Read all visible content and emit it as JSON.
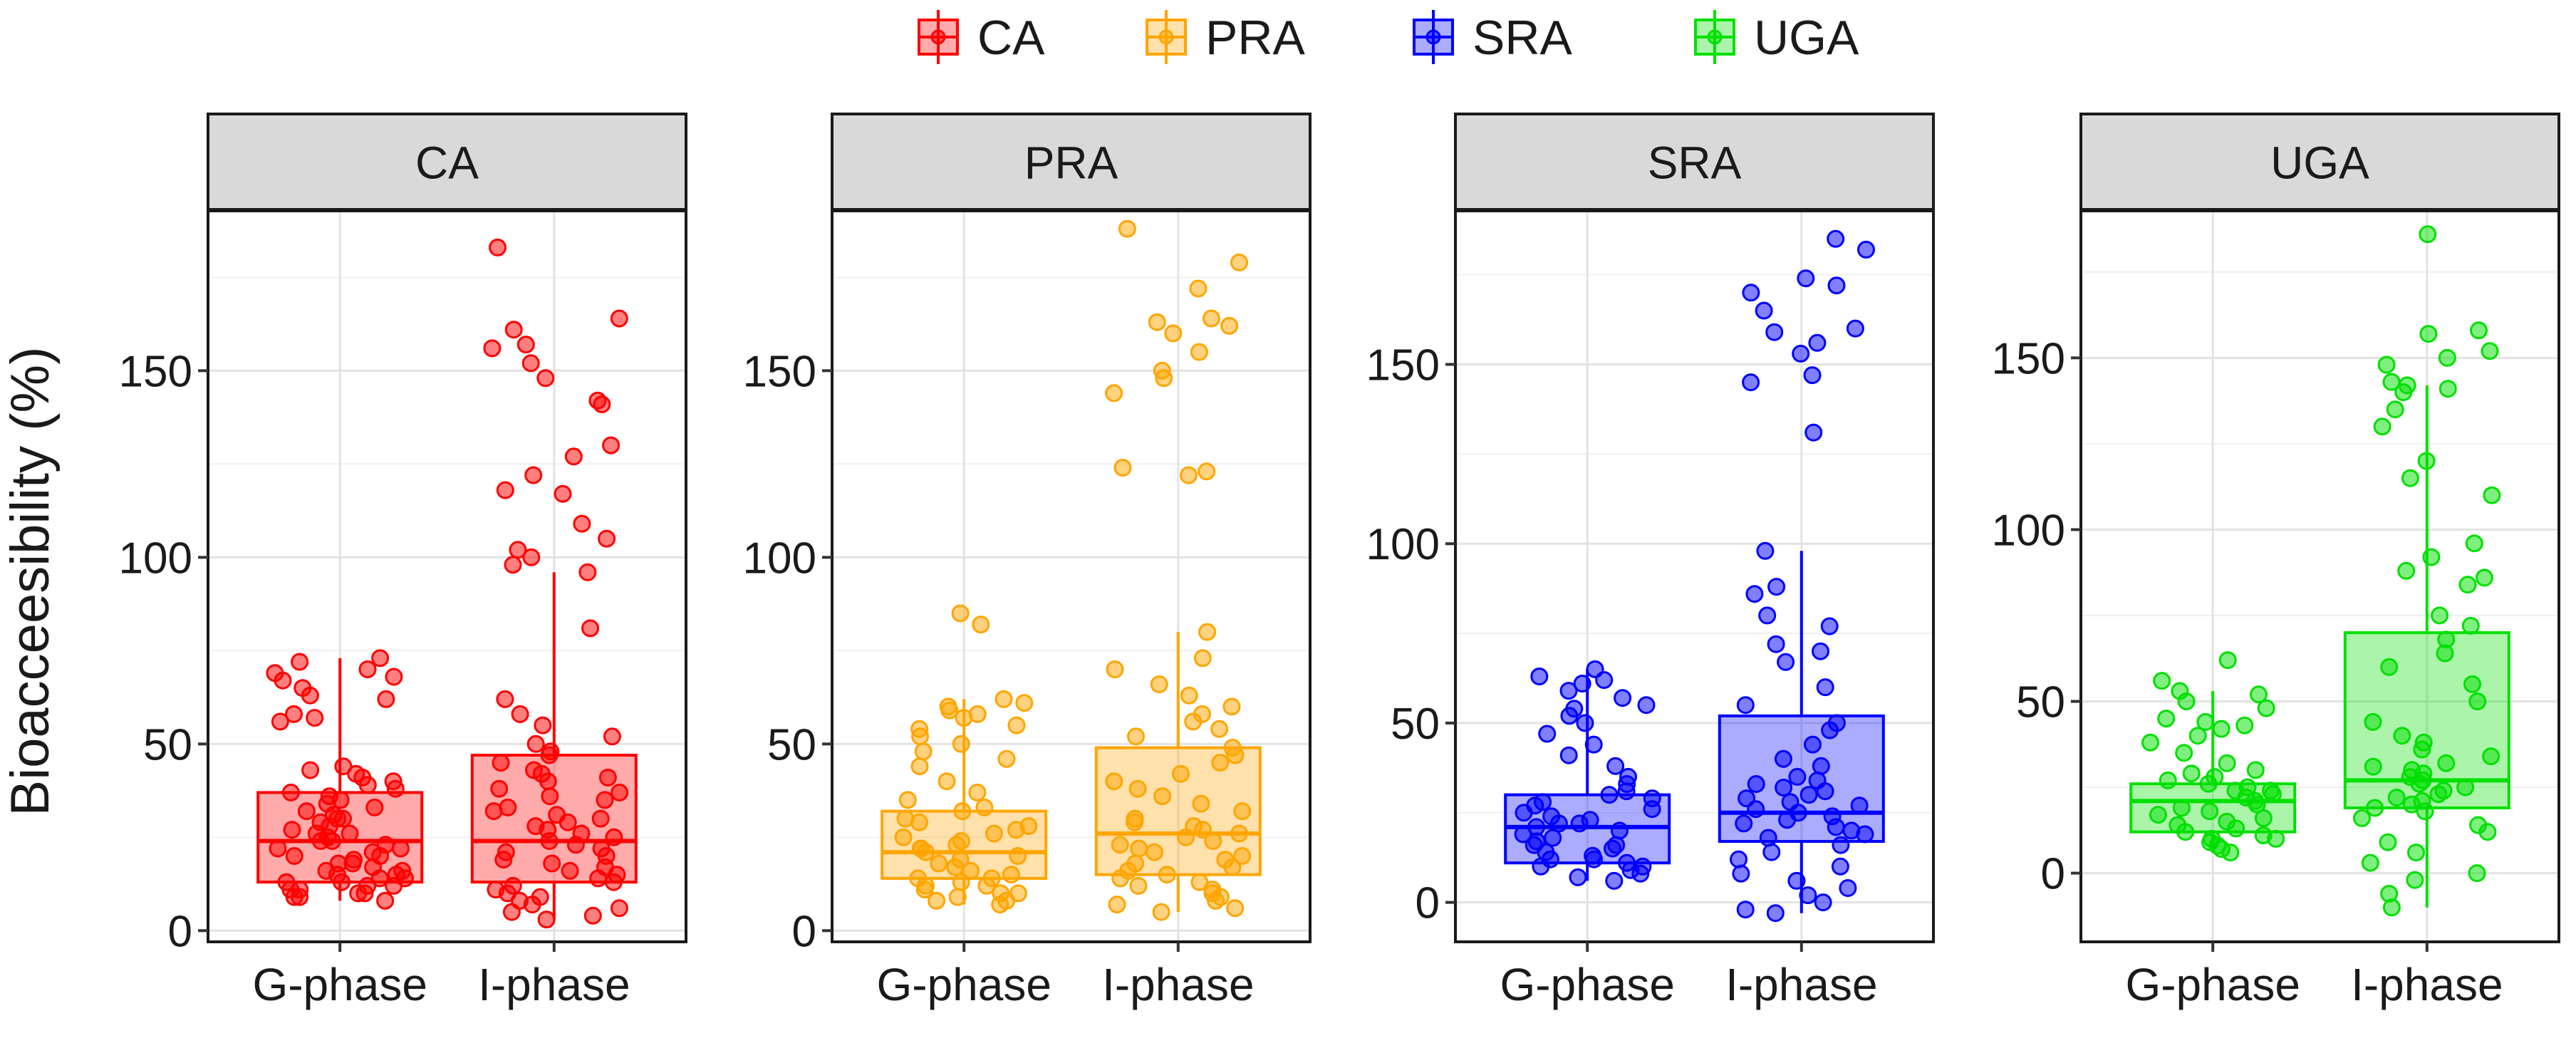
{
  "chart_data": {
    "type": "boxplot",
    "ylabel": "Bioacceesibility (%)",
    "legend": {
      "position": "top",
      "entries": [
        {
          "name": "CA",
          "color": "#ff0000"
        },
        {
          "name": "PRA",
          "color": "#ffa500"
        },
        {
          "name": "SRA",
          "color": "#0000ff"
        },
        {
          "name": "UGA",
          "color": "#00e000"
        }
      ]
    },
    "categories": [
      "G-phase",
      "I-phase"
    ],
    "grid": true,
    "panels": [
      {
        "title": "CA",
        "color": "#ff0000",
        "ylim": [
          -3,
          193
        ],
        "yticks": [
          0,
          50,
          100,
          150
        ],
        "boxes": [
          {
            "category": "G-phase",
            "q1": 13,
            "median": 24,
            "q3": 37,
            "whisker_low": 8,
            "whisker_high": 73,
            "points": [
              8,
              9,
              9,
              10,
              10,
              11,
              11,
              12,
              12,
              13,
              13,
              14,
              14,
              15,
              15,
              16,
              16,
              17,
              18,
              18,
              19,
              20,
              20,
              21,
              22,
              22,
              23,
              24,
              24,
              25,
              26,
              26,
              27,
              28,
              29,
              30,
              30,
              31,
              32,
              33,
              34,
              35,
              36,
              37,
              38,
              39,
              40,
              41,
              42,
              43,
              44,
              56,
              57,
              58,
              62,
              63,
              65,
              67,
              68,
              69,
              70,
              72,
              73
            ]
          },
          {
            "category": "I-phase",
            "q1": 13,
            "median": 24,
            "q3": 47,
            "whisker_low": 3,
            "whisker_high": 96,
            "points": [
              3,
              4,
              5,
              6,
              7,
              8,
              9,
              10,
              11,
              12,
              13,
              14,
              15,
              16,
              17,
              18,
              19,
              20,
              21,
              22,
              23,
              24,
              25,
              26,
              27,
              28,
              29,
              30,
              31,
              32,
              33,
              35,
              36,
              37,
              38,
              40,
              41,
              42,
              43,
              45,
              47,
              48,
              50,
              52,
              55,
              58,
              62,
              81,
              96,
              98,
              100,
              102,
              105,
              109,
              117,
              118,
              122,
              127,
              130,
              141,
              142,
              148,
              152,
              156,
              157,
              161,
              164,
              183
            ]
          }
        ]
      },
      {
        "title": "PRA",
        "color": "#ffa500",
        "ylim": [
          -3,
          193
        ],
        "yticks": [
          0,
          50,
          100,
          150
        ],
        "boxes": [
          {
            "category": "G-phase",
            "q1": 14,
            "median": 21,
            "q3": 32,
            "whisker_low": 7,
            "whisker_high": 62,
            "points": [
              7,
              8,
              8,
              9,
              10,
              10,
              11,
              12,
              12,
              13,
              14,
              14,
              15,
              16,
              17,
              18,
              19,
              20,
              21,
              22,
              22,
              23,
              24,
              25,
              26,
              27,
              28,
              29,
              30,
              32,
              33,
              35,
              37,
              40,
              44,
              46,
              48,
              50,
              52,
              54,
              55,
              57,
              58,
              59,
              60,
              61,
              62,
              82,
              85
            ]
          },
          {
            "category": "I-phase",
            "q1": 15,
            "median": 26,
            "q3": 49,
            "whisker_low": 5,
            "whisker_high": 80,
            "points": [
              5,
              6,
              7,
              8,
              9,
              10,
              11,
              12,
              13,
              14,
              15,
              16,
              17,
              18,
              19,
              20,
              21,
              22,
              23,
              24,
              25,
              26,
              27,
              28,
              29,
              30,
              32,
              34,
              36,
              38,
              40,
              42,
              45,
              47,
              49,
              52,
              54,
              56,
              58,
              60,
              63,
              66,
              70,
              73,
              80,
              122,
              123,
              124,
              144,
              148,
              150,
              155,
              160,
              162,
              163,
              164,
              172,
              179,
              188
            ]
          }
        ]
      },
      {
        "title": "SRA",
        "color": "#0000ff",
        "ylim": [
          -11,
          193
        ],
        "yticks": [
          0,
          50,
          100,
          150
        ],
        "boxes": [
          {
            "category": "G-phase",
            "q1": 11,
            "median": 21,
            "q3": 30,
            "whisker_low": 6,
            "whisker_high": 65,
            "points": [
              6,
              7,
              8,
              9,
              10,
              10,
              11,
              12,
              12,
              13,
              14,
              15,
              16,
              16,
              17,
              18,
              19,
              20,
              21,
              22,
              22,
              23,
              24,
              25,
              26,
              27,
              28,
              29,
              30,
              31,
              33,
              35,
              38,
              41,
              44,
              47,
              50,
              52,
              54,
              55,
              57,
              59,
              61,
              62,
              63,
              65
            ]
          },
          {
            "category": "I-phase",
            "q1": 17,
            "median": 25,
            "q3": 52,
            "whisker_low": -3,
            "whisker_high": 98,
            "points": [
              -3,
              -2,
              0,
              2,
              4,
              6,
              8,
              10,
              12,
              14,
              16,
              18,
              19,
              20,
              21,
              22,
              23,
              24,
              25,
              26,
              27,
              28,
              29,
              30,
              31,
              32,
              33,
              34,
              35,
              38,
              40,
              44,
              48,
              50,
              55,
              60,
              67,
              70,
              72,
              77,
              80,
              86,
              88,
              98,
              131,
              145,
              147,
              153,
              156,
              159,
              160,
              165,
              170,
              172,
              174,
              182,
              185
            ]
          }
        ]
      },
      {
        "title": "UGA",
        "color": "#00e000",
        "ylim": [
          -20,
          193
        ],
        "yticks": [
          0,
          50,
          100,
          150
        ],
        "boxes": [
          {
            "category": "G-phase",
            "q1": 12,
            "median": 21,
            "q3": 26,
            "whisker_low": 6,
            "whisker_high": 53,
            "points": [
              6,
              7,
              8,
              9,
              10,
              10,
              11,
              12,
              13,
              14,
              15,
              16,
              17,
              18,
              19,
              20,
              21,
              22,
              23,
              24,
              24,
              25,
              26,
              27,
              28,
              29,
              30,
              32,
              35,
              38,
              40,
              42,
              43,
              44,
              45,
              48,
              50,
              52,
              53,
              56,
              62
            ]
          },
          {
            "category": "I-phase",
            "q1": 19,
            "median": 27,
            "q3": 70,
            "whisker_low": -10,
            "whisker_high": 142,
            "points": [
              -10,
              -6,
              -2,
              0,
              3,
              6,
              9,
              12,
              14,
              16,
              18,
              19,
              20,
              21,
              22,
              23,
              24,
              25,
              26,
              27,
              28,
              29,
              30,
              31,
              32,
              34,
              36,
              38,
              40,
              44,
              50,
              55,
              60,
              64,
              68,
              72,
              75,
              84,
              86,
              88,
              92,
              96,
              110,
              115,
              120,
              130,
              135,
              140,
              141,
              142,
              143,
              148,
              150,
              152,
              157,
              158,
              186
            ]
          }
        ]
      }
    ]
  }
}
